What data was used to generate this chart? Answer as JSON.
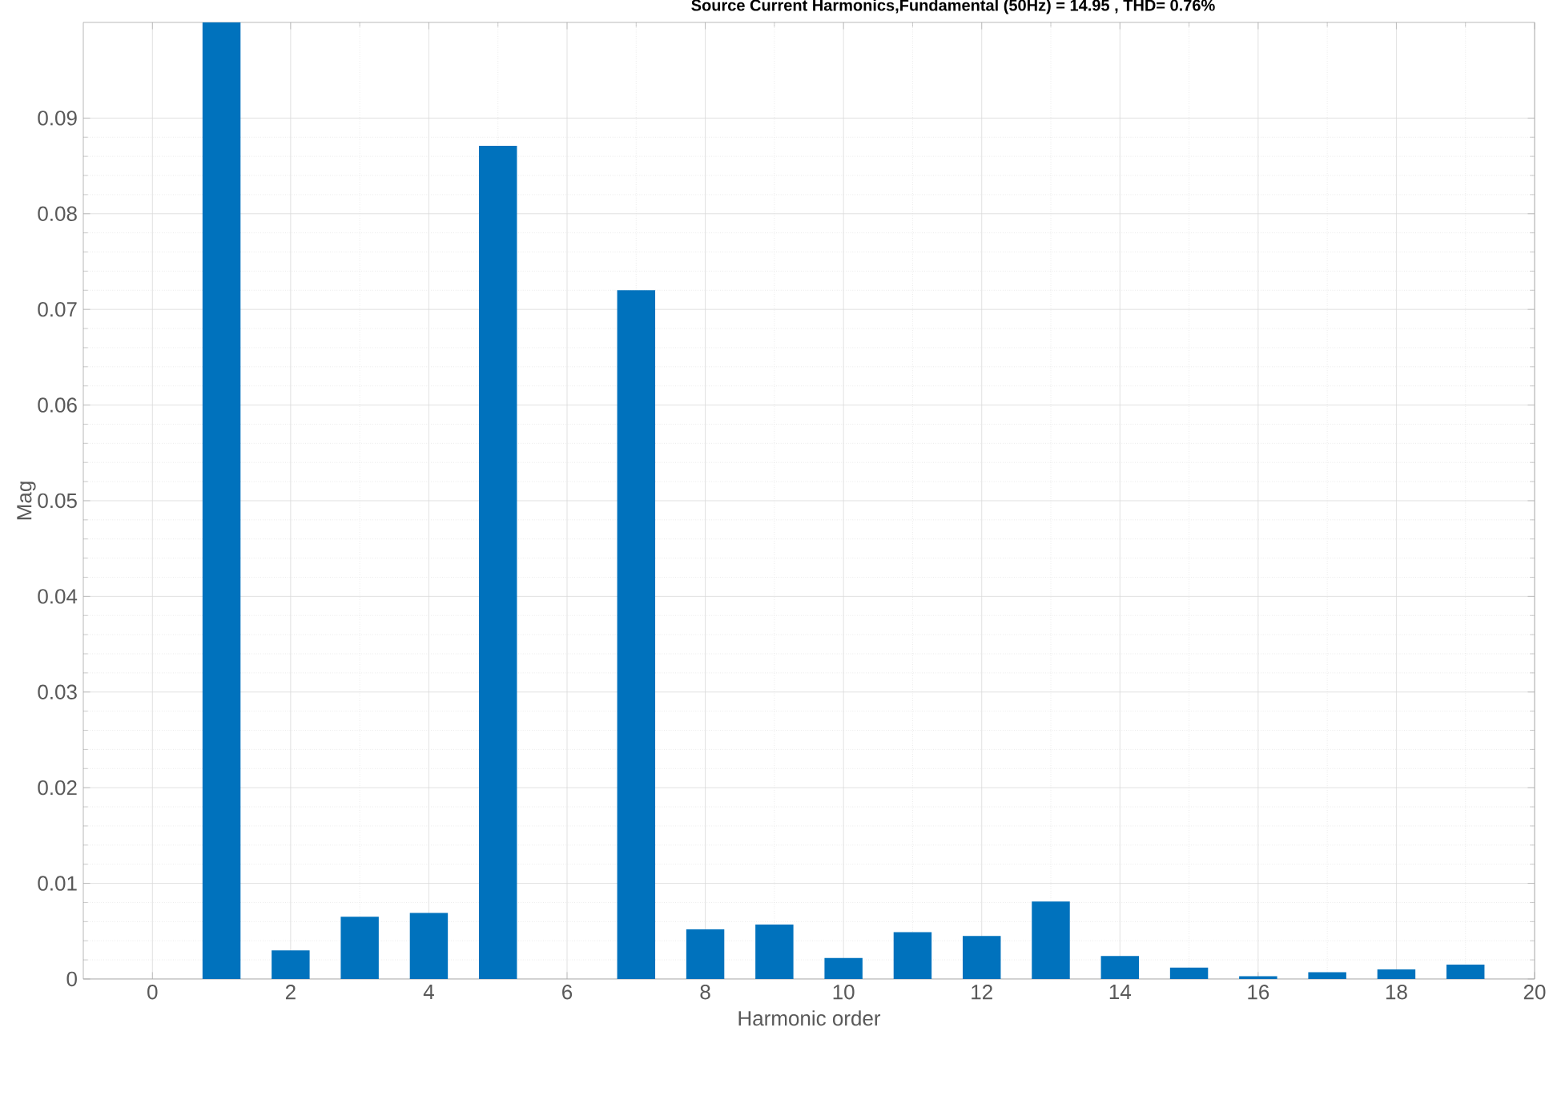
{
  "chart_data": {
    "type": "bar",
    "title": "Source Current Harmonics,Fundamental (50Hz) = 14.95 , THD= 0.76%",
    "xlabel": "Harmonic order",
    "ylabel": "Mag",
    "x": [
      0,
      1,
      2,
      3,
      4,
      5,
      6,
      7,
      8,
      9,
      10,
      11,
      12,
      13,
      14,
      15,
      16,
      17,
      18,
      19
    ],
    "values": [
      0,
      0.1,
      0.003,
      0.0065,
      0.0069,
      0.0871,
      0,
      0.072,
      0.0052,
      0.0057,
      0.0022,
      0.0049,
      0.0045,
      0.0081,
      0.0024,
      0.0012,
      0.0003,
      0.0007,
      0.001,
      0.0015
    ],
    "color": "#0072bd",
    "xlim": [
      -1,
      20
    ],
    "ylim": [
      0,
      0.1
    ],
    "xticks": [
      0,
      2,
      4,
      6,
      8,
      10,
      12,
      14,
      16,
      18,
      20
    ],
    "yticks": [
      0,
      0.01,
      0.02,
      0.03,
      0.04,
      0.05,
      0.06,
      0.07,
      0.08,
      0.09
    ],
    "grid": true
  }
}
